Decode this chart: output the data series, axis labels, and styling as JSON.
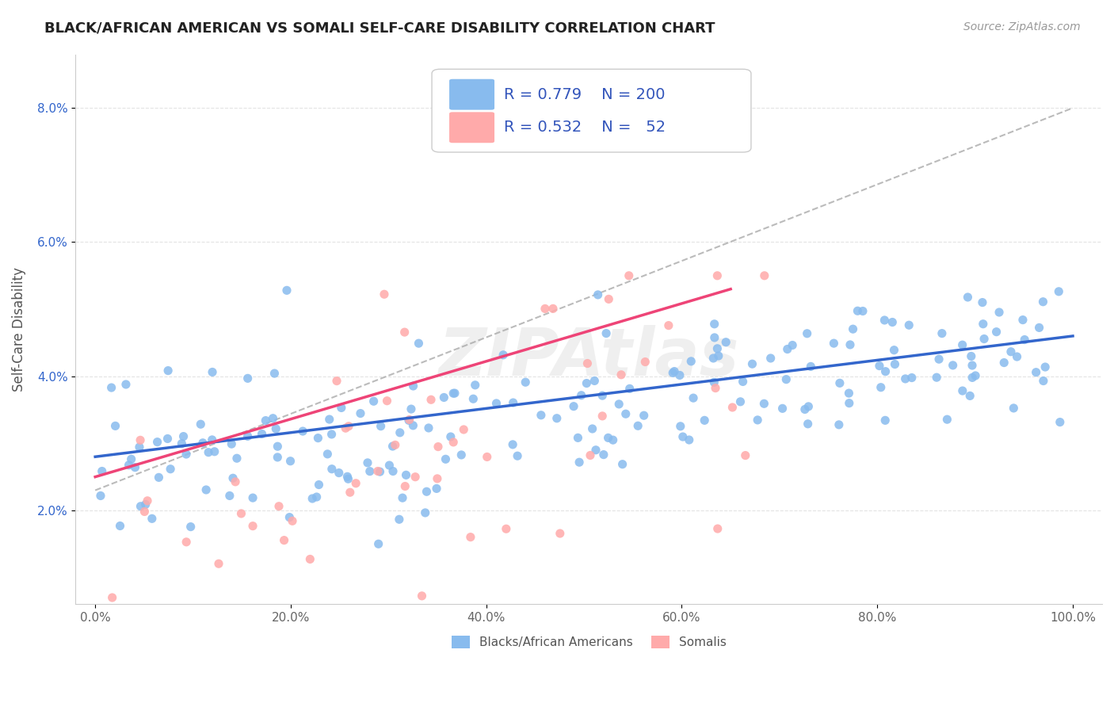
{
  "title": "BLACK/AFRICAN AMERICAN VS SOMALI SELF-CARE DISABILITY CORRELATION CHART",
  "source": "Source: ZipAtlas.com",
  "ylabel": "Self-Care Disability",
  "blue_R": 0.779,
  "blue_N": 200,
  "pink_R": 0.532,
  "pink_N": 52,
  "blue_color": "#88BBEE",
  "pink_color": "#FFAAAA",
  "blue_line_color": "#3366CC",
  "pink_line_color": "#EE4477",
  "ref_line_color": "#AAAAAA",
  "legend_text_color": "#3355BB",
  "watermark": "ZIPAtlas",
  "blue_trend_y0": 2.8,
  "blue_trend_y1": 4.6,
  "pink_trend_x0": 0,
  "pink_trend_x1": 65,
  "pink_trend_y0": 2.5,
  "pink_trend_y1": 5.3,
  "ref_y0": 2.3,
  "ref_y1": 8.0,
  "xlim_min": -2,
  "xlim_max": 103,
  "ylim_min": 0.6,
  "ylim_max": 8.8,
  "xticks": [
    0,
    20,
    40,
    60,
    80,
    100
  ],
  "yticks": [
    2.0,
    4.0,
    6.0,
    8.0
  ],
  "legend_label_blue": "Blacks/African Americans",
  "legend_label_pink": "Somalis"
}
